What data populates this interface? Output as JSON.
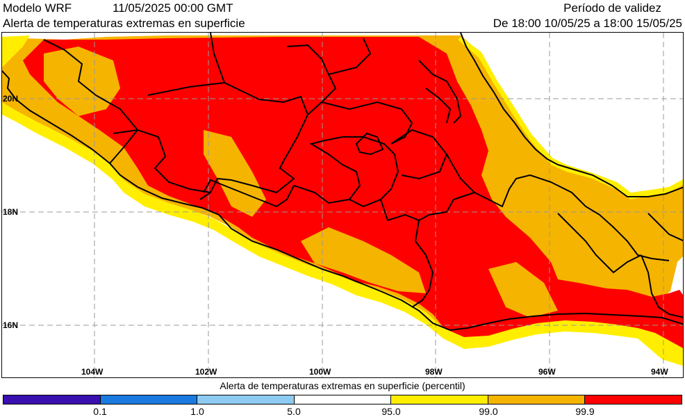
{
  "header": {
    "model": "Modelo WRF",
    "datetime": "11/05/2025 00:00 GMT",
    "subtitle": "Alerta de temperaturas extremas en superficie",
    "validity_title": "Período de validez",
    "validity_range": "De 18:00 10/05/25 a 18:00 15/05/25"
  },
  "map": {
    "latitude_labels": [
      "20N",
      "18N",
      "16N"
    ],
    "longitude_labels": [
      "104W",
      "102W",
      "100W",
      "98W",
      "96W",
      "94W"
    ]
  },
  "legend": {
    "title": "Alerta de temperaturas extremas en superficie (percentil)",
    "ticks": [
      "0.1",
      "1.0",
      "5.0",
      "95.0",
      "99.0",
      "99.9"
    ],
    "colors": [
      "#3a10b0",
      "#1a7ae0",
      "#8ecbf2",
      "#ffffff",
      "#ffee00",
      "#f5b400",
      "#ff0000"
    ]
  }
}
